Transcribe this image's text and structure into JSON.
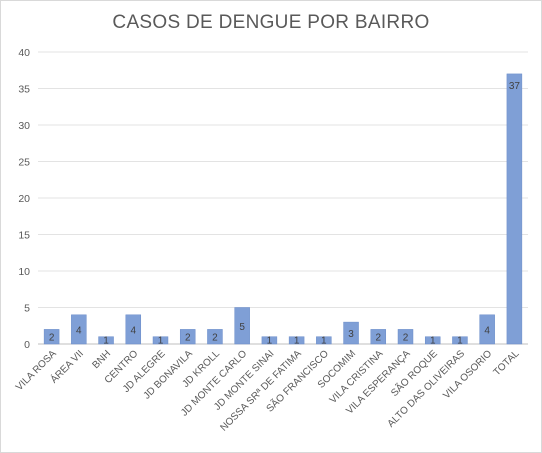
{
  "chart_data": {
    "type": "bar",
    "title": "CASOS DE DENGUE POR BAIRRO",
    "xlabel": "",
    "ylabel": "",
    "categories": [
      "VILA ROSA",
      "ÁREA VII",
      "BNH",
      "CENTRO",
      "JD ALEGRE",
      "JD BONAVILA",
      "JD KROLL",
      "JD MONTE CARLO",
      "JD MONTE SINAI",
      "NOSSA SRª DE FATIMA",
      "SÃO FRANCISCO",
      "SOCOMIM",
      "VILA CRISTINA",
      "VILA ESPERANÇA",
      "SÃO ROQUE",
      "ALTO DAS OLIVEIRAS",
      "VILA OSORIO",
      "TOTAL"
    ],
    "values": [
      2,
      4,
      1,
      4,
      1,
      2,
      2,
      5,
      1,
      1,
      1,
      3,
      2,
      2,
      1,
      1,
      4,
      37
    ],
    "ylim": [
      0,
      40
    ],
    "yticks": [
      0,
      5,
      10,
      15,
      20,
      25,
      30,
      35,
      40
    ],
    "grid": true,
    "legend": "none",
    "bar_color": "#7f9fd6",
    "bar_edge_color": "#6a8cc9"
  }
}
